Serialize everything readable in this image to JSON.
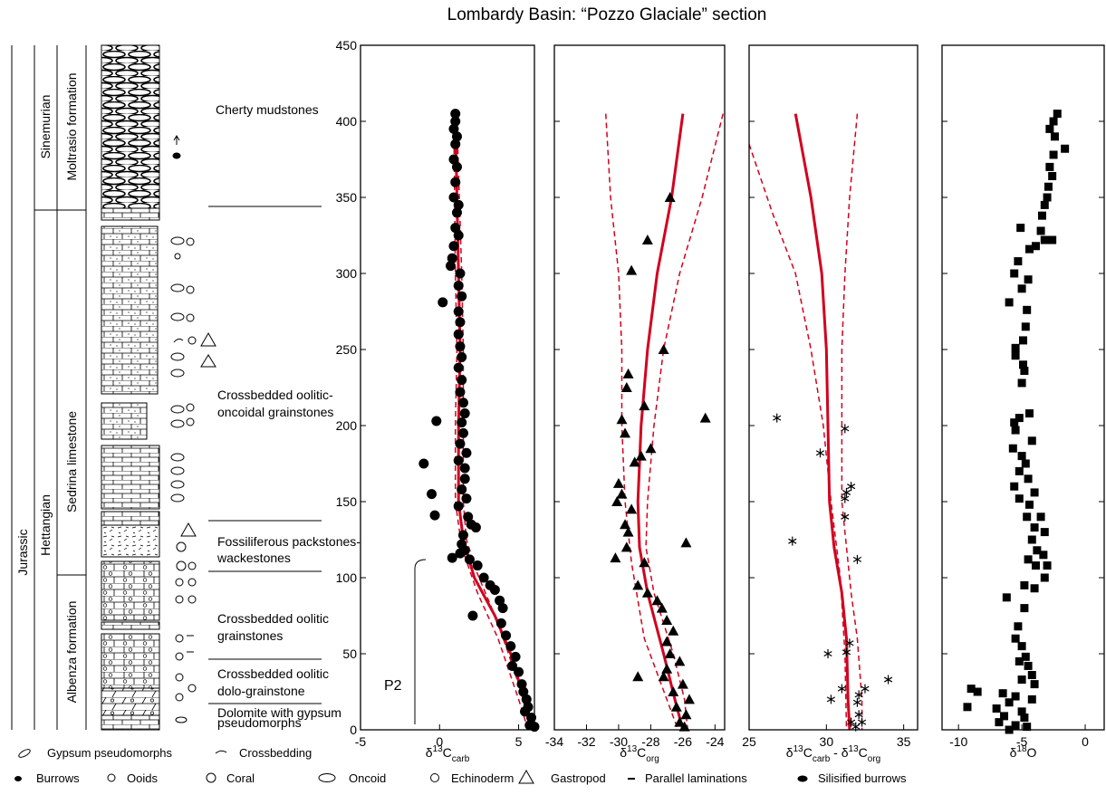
{
  "title": "Lombardy Basin: “Pozzo Glaciale” section",
  "figure": {
    "system": "Jurassic",
    "stages": [
      "Sinemurian",
      "Hettangian"
    ],
    "formations": [
      "Moltrasio formation",
      "Sedrina limestone",
      "Albenza formation"
    ],
    "lithologies": [
      [
        "Cherty mudstones"
      ],
      [
        "Crossbedded oolitic-",
        "oncoidal grainstones"
      ],
      [
        "Fossiliferous packstones-",
        "wackestones"
      ],
      [
        "Crossbedded oolitic",
        "grainstones"
      ],
      [
        "Crossbedded oolitic",
        "dolo-grainstone"
      ],
      [
        "Dolomite with gypsum",
        "pseudomorphs"
      ]
    ],
    "annotation": "P2",
    "legend": [
      "Gypsum pseudomorphs",
      "Crossbedding",
      "Burrows",
      "Ooids",
      "Coral",
      "Oncoid",
      "Echinoderm",
      "Gastropod",
      "Parallel laminations",
      "Silisified burrows"
    ]
  },
  "chart_data": [
    {
      "type": "scatter",
      "marker": "circle",
      "color": "#000000",
      "curve_color": "#d2001e",
      "xlabel": [
        "δ",
        {
          "sup": "13"
        },
        "C",
        {
          "sub": "carb"
        }
      ],
      "xlim": [
        -5,
        6
      ],
      "xticks": [
        -5,
        0,
        5
      ],
      "ylim": [
        0,
        450
      ],
      "yticks": [
        0,
        50,
        100,
        150,
        200,
        250,
        300,
        350,
        400,
        450
      ],
      "points": {
        "x": [
          1.0,
          1.0,
          0.9,
          1.1,
          1.0,
          0.9,
          1.1,
          1.0,
          0.9,
          1.2,
          1.1,
          1.0,
          1.2,
          0.9,
          0.8,
          0.7,
          1.3,
          1.2,
          1.4,
          0.2,
          1.2,
          1.3,
          1.2,
          1.3,
          1.4,
          1.2,
          1.4,
          1.3,
          1.5,
          1.6,
          1.4,
          -0.2,
          1.5,
          1.3,
          1.7,
          1.2,
          1.6,
          -1.0,
          1.6,
          1.4,
          1.7,
          -0.5,
          -0.3,
          1.2,
          1.8,
          2.0,
          2.3,
          1.5,
          1.4,
          1.6,
          1.3,
          0.8,
          1.9,
          2.4,
          2.8,
          3.2,
          3.5,
          3.8,
          4.0,
          2.1,
          3.9,
          4.2,
          4.5,
          4.8,
          4.6,
          5.0,
          5.2,
          5.3,
          5.5,
          5.6,
          5.4,
          5.8,
          5.7,
          6.0
        ],
        "y": [
          405,
          400,
          395,
          390,
          385,
          375,
          370,
          360,
          350,
          345,
          340,
          330,
          325,
          318,
          310,
          305,
          300,
          292,
          285,
          281,
          275,
          268,
          260,
          252,
          245,
          238,
          230,
          222,
          215,
          208,
          202,
          203,
          195,
          188,
          182,
          177,
          172,
          175,
          165,
          158,
          152,
          155,
          141,
          147,
          140,
          135,
          133,
          128,
          122,
          118,
          116,
          113,
          112,
          108,
          100,
          95,
          92,
          85,
          80,
          75,
          70,
          62,
          55,
          48,
          42,
          38,
          30,
          25,
          20,
          15,
          12,
          8,
          3,
          2
        ]
      },
      "curves": [
        {
          "style": "solid",
          "x": [
            1.0,
            1.1,
            1.2,
            1.3,
            1.2,
            1.2,
            1.5,
            2.2,
            3.5,
            4.5,
            5.2,
            5.8
          ],
          "y": [
            400,
            350,
            300,
            250,
            200,
            150,
            125,
            100,
            75,
            50,
            25,
            0
          ]
        },
        {
          "style": "dashed",
          "x": [
            0.9,
            1.0,
            1.1,
            1.0,
            1.0,
            1.4,
            2.4,
            3.7,
            5.0,
            5.6
          ],
          "y": [
            400,
            300,
            250,
            200,
            150,
            120,
            90,
            60,
            20,
            0
          ]
        },
        {
          "style": "dashed",
          "x": [
            1.1,
            1.4,
            1.5,
            1.5,
            1.5,
            1.7,
            2.3,
            3.3,
            4.2,
            5.0,
            5.9
          ],
          "y": [
            400,
            300,
            250,
            200,
            150,
            125,
            105,
            80,
            55,
            30,
            0
          ]
        }
      ]
    },
    {
      "type": "scatter",
      "marker": "triangle",
      "color": "#000000",
      "curve_color": "#d2001e",
      "xlabel": [
        "δ",
        {
          "sup": "13"
        },
        "C",
        {
          "sub": "org"
        }
      ],
      "xlim": [
        -34,
        -23.4
      ],
      "xticks": [
        -34,
        -32,
        -30,
        -28,
        -26,
        -24
      ],
      "ylim": [
        0,
        450
      ],
      "yticks": [
        0,
        50,
        100,
        150,
        200,
        250,
        300,
        350,
        400,
        450
      ],
      "points": {
        "x": [
          -26.8,
          -28.2,
          -29.2,
          -27.2,
          -29.4,
          -29.5,
          -28.4,
          -24.6,
          -29.8,
          -29.6,
          -28.0,
          -28.6,
          -29.0,
          -30.0,
          -29.8,
          -30.1,
          -29.2,
          -29.6,
          -29.4,
          -25.8,
          -29.5,
          -30.2,
          -28.4,
          -28.8,
          -28.2,
          -27.6,
          -27.3,
          -27.0,
          -26.6,
          -27.0,
          -26.8,
          -26.2,
          -27.0,
          -28.8,
          -27.2,
          -26.0,
          -26.6,
          -25.6,
          -26.4,
          -25.8,
          -26.2,
          -25.9
        ],
        "y": [
          350,
          322,
          302,
          250,
          234,
          225,
          213,
          205,
          204,
          195,
          185,
          180,
          176,
          162,
          155,
          150,
          145,
          135,
          130,
          123,
          120,
          113,
          110,
          95,
          90,
          85,
          80,
          72,
          65,
          58,
          50,
          45,
          40,
          35,
          35,
          30,
          25,
          20,
          15,
          10,
          5,
          2
        ]
      },
      "curves": [
        {
          "style": "solid",
          "x": [
            -26.0,
            -26.7,
            -27.6,
            -28.2,
            -28.6,
            -28.8,
            -28.7,
            -28.2,
            -27.2,
            -26.5,
            -26.0
          ],
          "y": [
            405,
            350,
            300,
            250,
            200,
            150,
            120,
            90,
            50,
            20,
            0
          ]
        },
        {
          "style": "dashed",
          "x": [
            -30.8,
            -30.5,
            -30.0,
            -29.8,
            -29.8,
            -29.6,
            -29.2,
            -28.4,
            -27.0,
            -26.3
          ],
          "y": [
            405,
            350,
            300,
            250,
            200,
            150,
            110,
            60,
            20,
            0
          ]
        },
        {
          "style": "dashed",
          "x": [
            -23.5,
            -24.8,
            -26.2,
            -27.2,
            -27.8,
            -28.2,
            -28.3,
            -27.8,
            -26.6,
            -25.9,
            -25.7
          ],
          "y": [
            405,
            350,
            300,
            250,
            200,
            150,
            120,
            90,
            50,
            20,
            0
          ]
        }
      ]
    },
    {
      "type": "scatter",
      "marker": "asterisk",
      "color": "#000000",
      "curve_color": "#d2001e",
      "xlabel": [
        "δ",
        {
          "sup": "13"
        },
        "C",
        {
          "sub": "carb"
        },
        " - δ",
        {
          "sup": "13"
        },
        "C",
        {
          "sub": "org"
        }
      ],
      "xlim": [
        25,
        35.9
      ],
      "xticks": [
        25,
        30,
        35
      ],
      "ylim": [
        0,
        450
      ],
      "yticks": [
        0,
        50,
        100,
        150,
        200,
        250,
        300,
        350,
        400,
        450
      ],
      "points": {
        "x": [
          26.8,
          31.2,
          29.6,
          31.6,
          31.3,
          31.2,
          31.2,
          27.8,
          32.0,
          31.5,
          31.3,
          30.1,
          34.0,
          32.5,
          31.0,
          32.1,
          30.3,
          32.0,
          32.1,
          32.3,
          31.6,
          31.9
        ],
        "y": [
          205,
          198,
          182,
          160,
          156,
          152,
          140,
          124,
          112,
          57,
          51,
          50,
          33,
          27,
          27,
          23,
          20,
          18,
          10,
          5,
          5,
          2
        ]
      },
      "curves": [
        {
          "style": "solid",
          "x": [
            28.0,
            29.0,
            29.7,
            30.0,
            30.1,
            30.2,
            30.5,
            31.0,
            31.3,
            31.4,
            31.5
          ],
          "y": [
            405,
            350,
            300,
            250,
            200,
            150,
            120,
            90,
            60,
            20,
            0
          ]
        },
        {
          "style": "dashed",
          "x": [
            25.0,
            26.5,
            28.0,
            29.0,
            29.8,
            30.3,
            30.9,
            31.2,
            31.3
          ],
          "y": [
            385,
            340,
            300,
            250,
            200,
            150,
            100,
            50,
            0
          ]
        },
        {
          "style": "dashed",
          "x": [
            32.0,
            31.5,
            31.2,
            31.0,
            31.0,
            31.0,
            31.3,
            31.6,
            32.0,
            32.3,
            32.3
          ],
          "y": [
            405,
            350,
            300,
            250,
            200,
            150,
            120,
            90,
            60,
            20,
            0
          ]
        }
      ]
    },
    {
      "type": "scatter",
      "marker": "square",
      "color": "#000000",
      "xlabel": [
        "δ",
        {
          "sup": "18"
        },
        "O"
      ],
      "xlim": [
        -11.3,
        1.5
      ],
      "xticks": [
        -10,
        -5,
        0
      ],
      "ylim": [
        0,
        450
      ],
      "yticks": [
        0,
        50,
        100,
        150,
        200,
        250,
        300,
        350,
        400,
        450
      ],
      "points": {
        "x": [
          -2.2,
          -2.5,
          -2.8,
          -2.4,
          -1.6,
          -2.5,
          -2.8,
          -2.6,
          -2.9,
          -3.0,
          -3.2,
          -3.4,
          -5.1,
          -3.5,
          -2.6,
          -3.2,
          -3.9,
          -4.4,
          -5.3,
          -5.6,
          -4.5,
          -5.0,
          -6.0,
          -4.6,
          -4.7,
          -4.9,
          -5.5,
          -5.5,
          -4.9,
          -4.8,
          -5.0,
          -4.4,
          -5.2,
          -5.6,
          -5.5,
          -4.2,
          -5.7,
          -5.0,
          -4.7,
          -5.2,
          -4.5,
          -5.6,
          -4.0,
          -5.2,
          -4.4,
          -3.5,
          -4.6,
          -4.0,
          -3.2,
          -4.2,
          -3.8,
          -3.3,
          -4.5,
          -3.9,
          -3.0,
          -3.2,
          -4.8,
          -4.0,
          -6.2,
          -4.8,
          -5.3,
          -5.5,
          -5.0,
          -4.7,
          -5.2,
          -4.5,
          -4.2,
          -5.0,
          -4.0,
          -9.0,
          -8.5,
          -6.5,
          -5.5,
          -4.2,
          -6.0,
          -9.3,
          -7.0,
          -5.0,
          -6.4,
          -4.8,
          -6.8,
          -5.5,
          -6.0,
          -4.6
        ],
        "y": [
          405,
          400,
          395,
          390,
          382,
          378,
          370,
          364,
          357,
          350,
          345,
          338,
          330,
          328,
          322,
          322,
          318,
          316,
          308,
          300,
          296,
          290,
          281,
          276,
          265,
          256,
          251,
          246,
          240,
          236,
          228,
          208,
          205,
          202,
          197,
          190,
          185,
          180,
          175,
          170,
          165,
          160,
          156,
          152,
          148,
          140,
          140,
          133,
          130,
          125,
          118,
          115,
          112,
          108,
          108,
          100,
          95,
          93,
          87,
          80,
          68,
          60,
          55,
          48,
          45,
          42,
          36,
          33,
          30,
          27,
          25,
          24,
          22,
          20,
          18,
          15,
          14,
          12,
          9,
          8,
          5,
          3,
          0,
          2
        ]
      }
    }
  ]
}
